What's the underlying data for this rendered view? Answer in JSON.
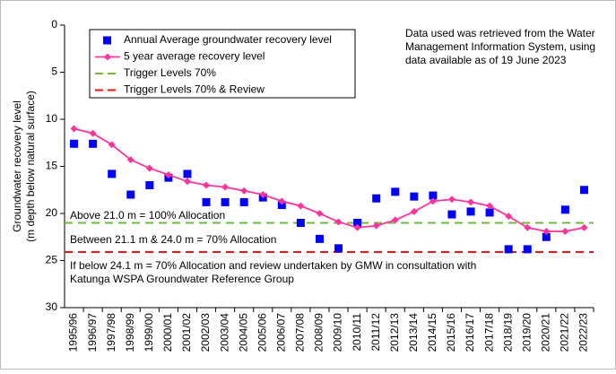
{
  "chart_data": {
    "type": "line",
    "y_label": [
      "Groundwater recovery level",
      "(m depth below natural surface)"
    ],
    "categories": [
      "1995/96",
      "1996/97",
      "1997/98",
      "1998/99",
      "1999/00",
      "2000/01",
      "2001/02",
      "2002/03",
      "2003/04",
      "2004/05",
      "2005/06",
      "2006/07",
      "2007/08",
      "2008/09",
      "2009/10",
      "2010/11",
      "2011/12",
      "2012/13",
      "2013/14",
      "2014/15",
      "2015/16",
      "2016/17",
      "2017/18",
      "2018/19",
      "2019/20",
      "2020/21",
      "2021/22",
      "2022/23"
    ],
    "series": [
      {
        "name": "Annual Average groundwater recovery level",
        "color": "#0000ff",
        "marker": "square",
        "values": [
          12.6,
          12.6,
          15.8,
          18.0,
          17.0,
          16.2,
          15.8,
          18.8,
          18.8,
          18.8,
          18.3,
          19.1,
          21.0,
          22.7,
          23.7,
          21.0,
          18.4,
          17.7,
          18.2,
          18.1,
          20.1,
          19.8,
          19.9,
          23.8,
          23.8,
          22.5,
          19.6,
          17.5
        ]
      },
      {
        "name": "5 year average recovery level",
        "color": "#ff3399",
        "marker": "diamond-line",
        "values": [
          11.0,
          11.5,
          12.7,
          14.3,
          15.2,
          15.9,
          16.6,
          17.0,
          17.2,
          17.6,
          18.0,
          18.7,
          19.2,
          20.0,
          20.9,
          21.5,
          21.3,
          20.7,
          19.8,
          18.7,
          18.5,
          18.8,
          19.2,
          20.3,
          21.5,
          21.9,
          21.9,
          21.5
        ]
      }
    ],
    "reference_lines": [
      {
        "name": "Trigger Levels 70%",
        "value": 21.0,
        "color": "#70b840"
      },
      {
        "name": "Trigger Levels 70% & Review",
        "value": 24.1,
        "color": "#ee1111"
      }
    ],
    "annotations": [
      "Above 21.0 m = 100% Allocation",
      "Between 21.1 m & 24.0 m = 70% Allocation",
      "If below 24.1 m = 70% Allocation and review undertaken by GMW in consultation with",
      "Katunga WSPA Groundwater Reference Group"
    ],
    "note": [
      "Data used was retrieved from the Water",
      "Management Information System, using",
      "data available as of 19 June 2023"
    ],
    "ylim": [
      0,
      30
    ],
    "yticks": [
      0,
      5,
      10,
      15,
      20,
      25,
      30
    ],
    "y_inverted": true
  }
}
